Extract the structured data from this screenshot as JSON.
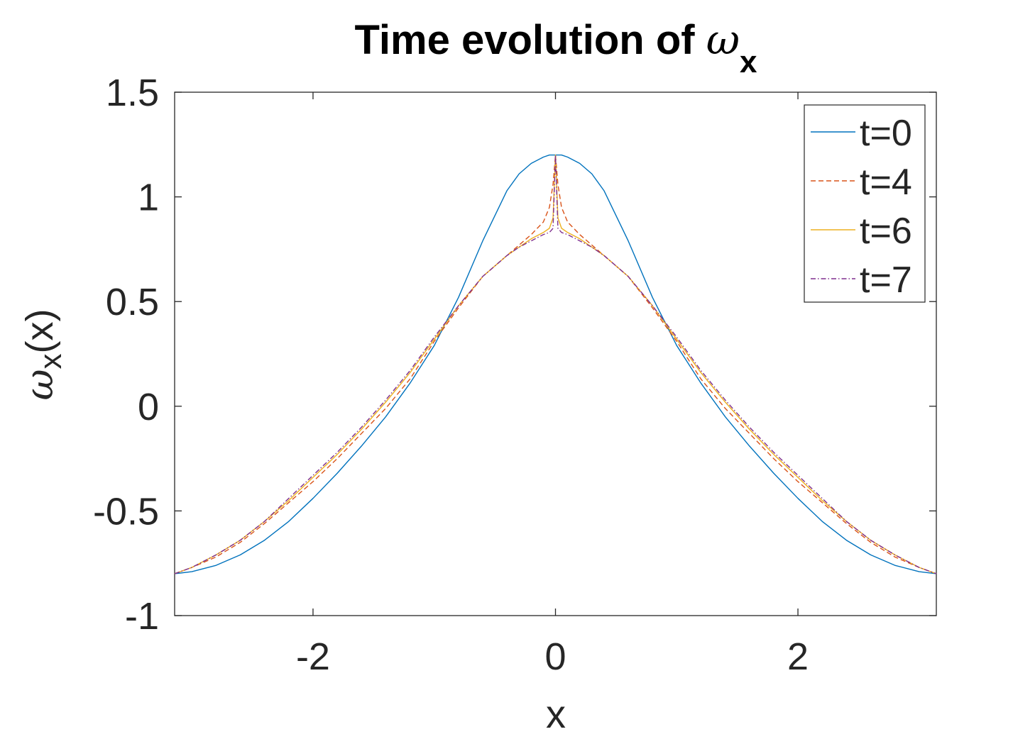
{
  "chart_data": {
    "type": "line",
    "title": "Time evolution of ω_x",
    "title_parts": {
      "text": "Time evolution of ",
      "symbol": "ω",
      "subscript": "x"
    },
    "xlabel": "x",
    "ylabel": "ω_x(x)",
    "ylabel_parts": {
      "symbol": "ω",
      "subscript": "x",
      "rest": "(x)"
    },
    "xlim": [
      -3.1416,
      3.1416
    ],
    "ylim": [
      -1,
      1.5
    ],
    "xticks": [
      -2,
      0,
      2
    ],
    "xtick_labels": [
      "-2",
      "0",
      "2"
    ],
    "yticks": [
      -1,
      -0.5,
      0,
      0.5,
      1,
      1.5
    ],
    "ytick_labels": [
      "-1",
      "-0.5",
      "0",
      "0.5",
      "1",
      "1.5"
    ],
    "grid": false,
    "legend_position": "top-right",
    "x": [
      -3.1416,
      -3.0,
      -2.8,
      -2.6,
      -2.4,
      -2.2,
      -2.0,
      -1.8,
      -1.6,
      -1.4,
      -1.2,
      -1.0,
      -0.8,
      -0.6,
      -0.4,
      -0.3,
      -0.2,
      -0.1,
      -0.05,
      -0.02,
      0.0,
      0.02,
      0.05,
      0.1,
      0.2,
      0.3,
      0.4,
      0.6,
      0.8,
      1.0,
      1.2,
      1.4,
      1.6,
      1.8,
      2.0,
      2.2,
      2.4,
      2.6,
      2.8,
      3.0,
      3.1416
    ],
    "series": [
      {
        "name": "t=0",
        "color": "#0072BD",
        "dash": "solid",
        "values": [
          -0.8,
          -0.79,
          -0.76,
          -0.71,
          -0.64,
          -0.55,
          -0.44,
          -0.32,
          -0.19,
          -0.05,
          0.11,
          0.29,
          0.52,
          0.79,
          1.03,
          1.11,
          1.16,
          1.19,
          1.2,
          1.2,
          1.2,
          1.2,
          1.2,
          1.19,
          1.16,
          1.11,
          1.03,
          0.79,
          0.52,
          0.29,
          0.11,
          -0.05,
          -0.19,
          -0.32,
          -0.44,
          -0.55,
          -0.64,
          -0.71,
          -0.76,
          -0.79,
          -0.8
        ]
      },
      {
        "name": "t=4",
        "color": "#D95319",
        "dash": "dashed",
        "values": [
          -0.8,
          -0.77,
          -0.72,
          -0.65,
          -0.56,
          -0.46,
          -0.36,
          -0.25,
          -0.13,
          -0.01,
          0.13,
          0.31,
          0.47,
          0.62,
          0.72,
          0.77,
          0.82,
          0.88,
          0.95,
          1.06,
          1.2,
          1.06,
          0.95,
          0.88,
          0.82,
          0.77,
          0.72,
          0.62,
          0.47,
          0.31,
          0.13,
          -0.01,
          -0.13,
          -0.25,
          -0.36,
          -0.46,
          -0.56,
          -0.65,
          -0.72,
          -0.77,
          -0.8
        ]
      },
      {
        "name": "t=6",
        "color": "#EDB120",
        "dash": "solid",
        "values": [
          -0.8,
          -0.77,
          -0.71,
          -0.64,
          -0.55,
          -0.45,
          -0.34,
          -0.23,
          -0.11,
          0.02,
          0.16,
          0.32,
          0.48,
          0.62,
          0.72,
          0.76,
          0.8,
          0.83,
          0.85,
          0.9,
          1.2,
          0.9,
          0.85,
          0.83,
          0.8,
          0.76,
          0.72,
          0.62,
          0.48,
          0.32,
          0.16,
          0.02,
          -0.11,
          -0.23,
          -0.34,
          -0.45,
          -0.55,
          -0.64,
          -0.71,
          -0.77,
          -0.8
        ]
      },
      {
        "name": "t=7",
        "color": "#7E2F8E",
        "dash": "dashdot",
        "values": [
          -0.8,
          -0.77,
          -0.71,
          -0.64,
          -0.55,
          -0.44,
          -0.33,
          -0.22,
          -0.1,
          0.03,
          0.17,
          0.33,
          0.48,
          0.62,
          0.72,
          0.76,
          0.79,
          0.82,
          0.83,
          0.85,
          1.2,
          0.85,
          0.83,
          0.82,
          0.79,
          0.76,
          0.72,
          0.62,
          0.48,
          0.33,
          0.17,
          0.03,
          -0.1,
          -0.22,
          -0.33,
          -0.44,
          -0.55,
          -0.64,
          -0.71,
          -0.77,
          -0.8
        ]
      }
    ]
  }
}
